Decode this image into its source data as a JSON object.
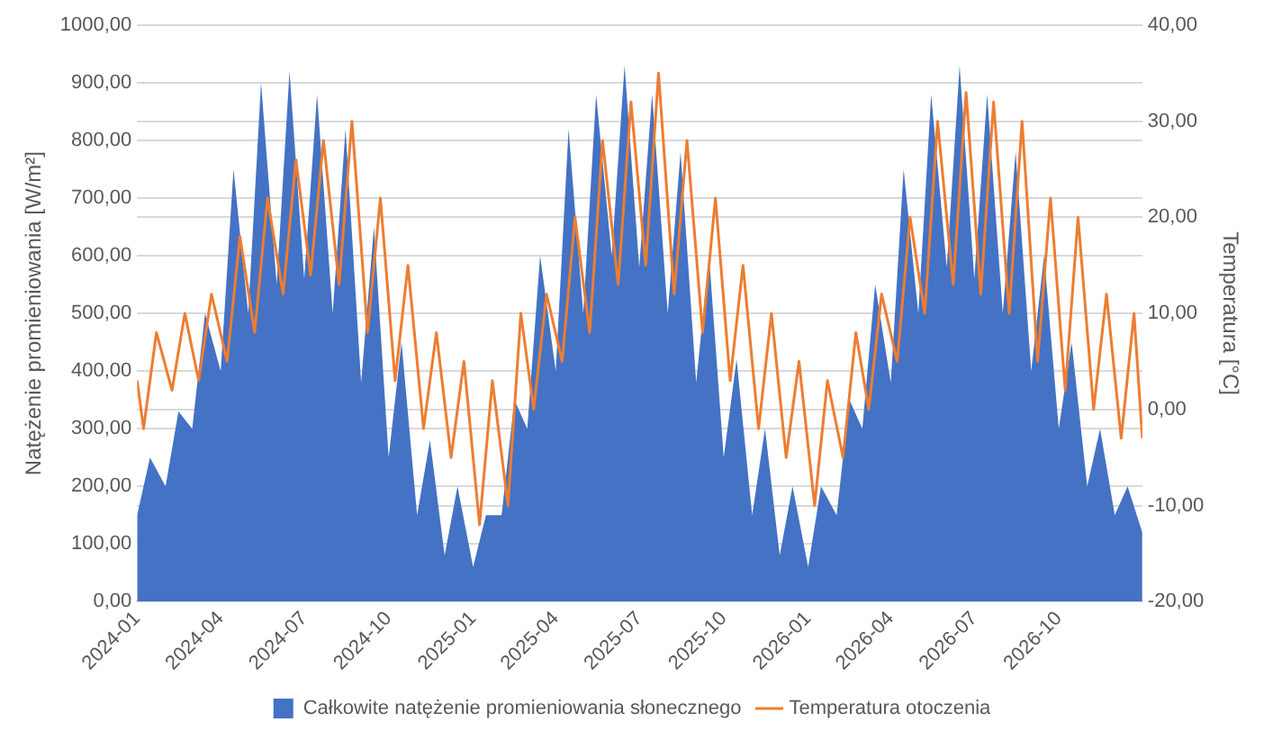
{
  "chart_data": {
    "type": "area",
    "ylabel": "Natężenie promieniowania [W/m²]",
    "y2label": "Temperatura [°C]",
    "xlim": [
      "2024-01-01",
      "2026-12-31"
    ],
    "xticks": [
      {
        "value": "2024-01-01",
        "label": "2024-01"
      },
      {
        "value": "2024-04-01",
        "label": "2024-04"
      },
      {
        "value": "2024-07-01",
        "label": "2024-07"
      },
      {
        "value": "2024-10-01",
        "label": "2024-10"
      },
      {
        "value": "2025-01-01",
        "label": "2025-01"
      },
      {
        "value": "2025-04-01",
        "label": "2025-04"
      },
      {
        "value": "2025-07-01",
        "label": "2025-07"
      },
      {
        "value": "2025-10-01",
        "label": "2025-10"
      },
      {
        "value": "2026-01-01",
        "label": "2026-01"
      },
      {
        "value": "2026-04-01",
        "label": "2026-04"
      },
      {
        "value": "2026-07-01",
        "label": "2026-07"
      },
      {
        "value": "2026-10-01",
        "label": "2026-10"
      }
    ],
    "ylim": [
      0,
      1000
    ],
    "yticks": [
      {
        "value": 0,
        "label": "0,00"
      },
      {
        "value": 100,
        "label": "100,00"
      },
      {
        "value": 200,
        "label": "200,00"
      },
      {
        "value": 300,
        "label": "300,00"
      },
      {
        "value": 400,
        "label": "400,00"
      },
      {
        "value": 500,
        "label": "500,00"
      },
      {
        "value": 600,
        "label": "600,00"
      },
      {
        "value": 700,
        "label": "700,00"
      },
      {
        "value": 800,
        "label": "800,00"
      },
      {
        "value": 900,
        "label": "900,00"
      },
      {
        "value": 1000,
        "label": "1000,00"
      }
    ],
    "y2lim": [
      -20,
      40
    ],
    "y2ticks": [
      {
        "value": -20,
        "label": "-20,00"
      },
      {
        "value": -10,
        "label": "-10,00"
      },
      {
        "value": 0,
        "label": "0,00"
      },
      {
        "value": 10,
        "label": "10,00"
      },
      {
        "value": 20,
        "label": "20,00"
      },
      {
        "value": 30,
        "label": "30,00"
      },
      {
        "value": 40,
        "label": "40,00"
      }
    ],
    "grid": "y",
    "legend": "bottom",
    "series": [
      {
        "name": "Całkowite natężenie promieniowania słonecznego",
        "color": "#4472c4",
        "x": [
          "2024-01-01",
          "2024-01-15",
          "2024-02-01",
          "2024-02-15",
          "2024-03-01",
          "2024-03-15",
          "2024-04-01",
          "2024-04-15",
          "2024-05-01",
          "2024-05-15",
          "2024-06-01",
          "2024-06-15",
          "2024-07-01",
          "2024-07-15",
          "2024-08-01",
          "2024-08-15",
          "2024-09-01",
          "2024-09-15",
          "2024-10-01",
          "2024-10-15",
          "2024-11-01",
          "2024-11-15",
          "2024-12-01",
          "2024-12-15",
          "2025-01-01",
          "2025-01-15",
          "2025-02-01",
          "2025-02-15",
          "2025-03-01",
          "2025-03-15",
          "2025-04-01",
          "2025-04-15",
          "2025-05-01",
          "2025-05-15",
          "2025-06-01",
          "2025-06-15",
          "2025-07-01",
          "2025-07-15",
          "2025-08-01",
          "2025-08-15",
          "2025-09-01",
          "2025-09-15",
          "2025-10-01",
          "2025-10-15",
          "2025-11-01",
          "2025-11-15",
          "2025-12-01",
          "2025-12-15",
          "2026-01-01",
          "2026-01-15",
          "2026-02-01",
          "2026-02-15",
          "2026-03-01",
          "2026-03-15",
          "2026-04-01",
          "2026-04-15",
          "2026-05-01",
          "2026-05-15",
          "2026-06-01",
          "2026-06-15",
          "2026-07-01",
          "2026-07-15",
          "2026-08-01",
          "2026-08-15",
          "2026-09-01",
          "2026-09-15",
          "2026-10-01",
          "2026-10-15",
          "2026-11-01",
          "2026-11-15",
          "2026-12-01",
          "2026-12-15",
          "2026-12-31"
        ],
        "values": [
          150,
          250,
          200,
          330,
          300,
          500,
          400,
          750,
          500,
          900,
          550,
          920,
          560,
          880,
          500,
          820,
          380,
          650,
          250,
          450,
          150,
          280,
          80,
          200,
          60,
          150,
          150,
          350,
          300,
          600,
          400,
          820,
          500,
          880,
          600,
          930,
          580,
          880,
          500,
          780,
          380,
          600,
          250,
          420,
          150,
          300,
          80,
          200,
          60,
          200,
          150,
          350,
          300,
          550,
          380,
          750,
          500,
          880,
          580,
          930,
          560,
          880,
          500,
          780,
          400,
          600,
          300,
          450,
          200,
          300,
          150,
          200,
          120
        ]
      },
      {
        "name": "Temperatura otoczenia",
        "type": "line",
        "axis": "y2",
        "color": "#ed7d31",
        "x": [
          "2024-01-01",
          "2024-01-08",
          "2024-01-22",
          "2024-02-08",
          "2024-02-22",
          "2024-03-08",
          "2024-03-22",
          "2024-04-08",
          "2024-04-22",
          "2024-05-08",
          "2024-05-22",
          "2024-06-08",
          "2024-06-22",
          "2024-07-08",
          "2024-07-22",
          "2024-08-08",
          "2024-08-22",
          "2024-09-08",
          "2024-09-22",
          "2024-10-08",
          "2024-10-22",
          "2024-11-08",
          "2024-11-22",
          "2024-12-08",
          "2024-12-22",
          "2025-01-08",
          "2025-01-22",
          "2025-02-08",
          "2025-02-22",
          "2025-03-08",
          "2025-03-22",
          "2025-04-08",
          "2025-04-22",
          "2025-05-08",
          "2025-05-22",
          "2025-06-08",
          "2025-06-22",
          "2025-07-08",
          "2025-07-22",
          "2025-08-08",
          "2025-08-22",
          "2025-09-08",
          "2025-09-22",
          "2025-10-08",
          "2025-10-22",
          "2025-11-08",
          "2025-11-22",
          "2025-12-08",
          "2025-12-22",
          "2026-01-08",
          "2026-01-22",
          "2026-02-08",
          "2026-02-22",
          "2026-03-08",
          "2026-03-22",
          "2026-04-08",
          "2026-04-22",
          "2026-05-08",
          "2026-05-22",
          "2026-06-08",
          "2026-06-22",
          "2026-07-08",
          "2026-07-22",
          "2026-08-08",
          "2026-08-22",
          "2026-09-08",
          "2026-09-22",
          "2026-10-08",
          "2026-10-22",
          "2026-11-08",
          "2026-11-22",
          "2026-12-08",
          "2026-12-22",
          "2026-12-31"
        ],
        "values": [
          3,
          -2,
          8,
          2,
          10,
          3,
          12,
          5,
          18,
          8,
          22,
          12,
          26,
          14,
          28,
          13,
          30,
          8,
          22,
          3,
          15,
          -2,
          8,
          -5,
          5,
          -12,
          3,
          -10,
          10,
          0,
          12,
          5,
          20,
          8,
          28,
          13,
          32,
          15,
          35,
          12,
          28,
          8,
          22,
          3,
          15,
          -2,
          10,
          -5,
          5,
          -10,
          3,
          -5,
          8,
          0,
          12,
          5,
          20,
          10,
          30,
          13,
          33,
          12,
          32,
          10,
          30,
          5,
          22,
          2,
          20,
          0,
          12,
          -3,
          10,
          -3
        ]
      }
    ]
  }
}
